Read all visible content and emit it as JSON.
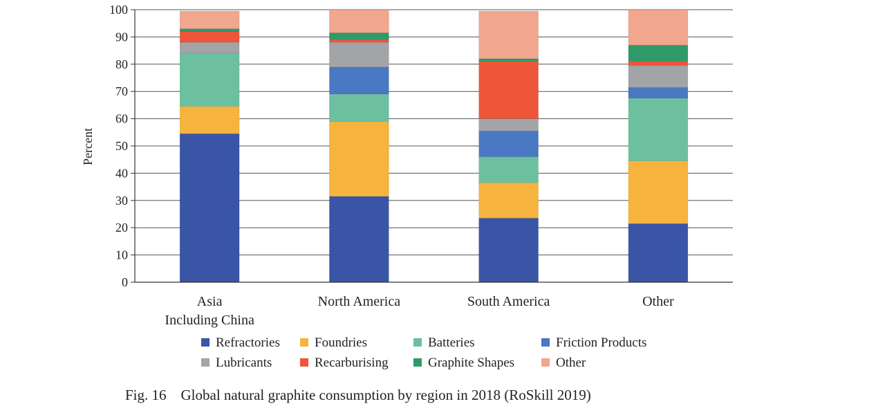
{
  "chart_data": {
    "type": "bar",
    "stacked": true,
    "title": "",
    "ylabel": "Percent",
    "xlabel": "",
    "ylim": [
      0,
      100
    ],
    "yticks": [
      0,
      10,
      20,
      30,
      40,
      50,
      60,
      70,
      80,
      90,
      100
    ],
    "grid": true,
    "legend_position": "bottom",
    "categories": [
      [
        "Asia",
        "Including China"
      ],
      [
        "North America"
      ],
      [
        "South America"
      ],
      [
        "Other"
      ]
    ],
    "series": [
      {
        "name": "Refractories",
        "color": "#3a55a6",
        "values": [
          54.5,
          31.5,
          23.5,
          21.5
        ]
      },
      {
        "name": "Foundries",
        "color": "#f6b33e",
        "values": [
          10,
          27.5,
          13,
          23
        ]
      },
      {
        "name": "Batteries",
        "color": "#6cc0a0",
        "values": [
          19.5,
          10,
          9.5,
          23
        ]
      },
      {
        "name": "Friction Products",
        "color": "#4a78c2",
        "values": [
          0,
          10,
          9.5,
          4
        ]
      },
      {
        "name": "Lubricants",
        "color": "#a2a4a7",
        "values": [
          4,
          9,
          4.5,
          8
        ]
      },
      {
        "name": "Recarburising",
        "color": "#ef5538",
        "values": [
          4,
          1,
          21,
          1.5
        ]
      },
      {
        "name": "Graphite Shapes",
        "color": "#2e9a69",
        "values": [
          1,
          2.5,
          1,
          6
        ]
      },
      {
        "name": "Other",
        "color": "#f1a68e",
        "values": [
          6.5,
          8.5,
          17.5,
          13
        ]
      }
    ]
  },
  "caption": "Fig. 16    Global natural graphite consumption by region in 2018 (RoSkill 2019)"
}
